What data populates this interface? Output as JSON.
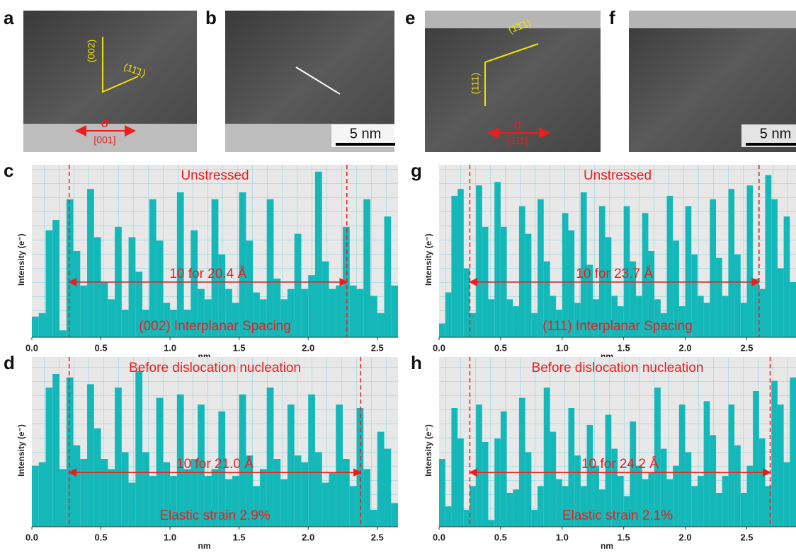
{
  "images": [
    {
      "label": "a",
      "annotations": [
        "(002)",
        "(11̄1)",
        "σ",
        "[001]"
      ]
    },
    {
      "label": "b",
      "annotations": [
        "5 nm"
      ]
    },
    {
      "label": "e",
      "annotations": [
        "(1̄1̄1)",
        "(111)",
        "σ",
        "[111]"
      ]
    },
    {
      "label": "f",
      "annotations": [
        "5 nm"
      ]
    }
  ],
  "chart_data": [
    {
      "type": "histogram",
      "panel": "c",
      "top_text": "Unstressed",
      "middle_text": "10 for 20.4 Å",
      "bottom_text": "(002) Interplanar Spacing",
      "y_label": "Intensity (e⁻)",
      "x_label": "nm",
      "color": "#14b8b8",
      "grid": true,
      "xlim": [
        0,
        2.65
      ],
      "ylim": [
        0,
        100
      ],
      "xticks": [
        {
          "value": 0,
          "label": "0.0"
        },
        0.5,
        {
          "value": 1,
          "label": "1.0"
        },
        1.5,
        {
          "value": 2,
          "label": "2.0"
        },
        2.5
      ],
      "vlines": [
        0.27,
        2.28
      ],
      "bins": [
        0,
        0.05,
        0.1,
        0.15,
        0.2,
        0.25,
        0.3,
        0.35,
        0.4,
        0.45,
        0.5,
        0.55,
        0.6,
        0.65,
        0.7,
        0.75,
        0.8,
        0.85,
        0.9,
        0.95,
        1,
        1.05,
        1.1,
        1.15,
        1.2,
        1.25,
        1.3,
        1.35,
        1.4,
        1.45,
        1.5,
        1.55,
        1.6,
        1.65,
        1.7,
        1.75,
        1.8,
        1.85,
        1.9,
        1.95,
        2,
        2.05,
        2.1,
        2.15,
        2.2,
        2.25,
        2.3,
        2.35,
        2.4,
        2.45,
        2.5,
        2.55,
        2.6,
        2.65
      ],
      "values": [
        12,
        14,
        62,
        68,
        4,
        80,
        50,
        30,
        86,
        58,
        32,
        22,
        64,
        16,
        58,
        38,
        16,
        80,
        56,
        20,
        16,
        84,
        16,
        62,
        28,
        22,
        80,
        48,
        28,
        20,
        84,
        56,
        26,
        22,
        80,
        34,
        22,
        28,
        60,
        28,
        36,
        96,
        44,
        28,
        30,
        64,
        30,
        28,
        80,
        24,
        14,
        70,
        30
      ]
    },
    {
      "type": "histogram",
      "panel": "d",
      "top_text": "Before dislocation nucleation",
      "middle_text": "10 for 21.0 Å",
      "bottom_text": "Elastic strain 2.9%",
      "y_label": "Intensity (e⁻)",
      "x_label": "nm",
      "color": "#14b8b8",
      "grid": true,
      "xlim": [
        0,
        2.65
      ],
      "ylim": [
        0,
        100
      ],
      "xticks": [
        {
          "value": 0,
          "label": "0.0"
        },
        0.5,
        {
          "value": 1,
          "label": "1.0"
        },
        1.5,
        {
          "value": 2,
          "label": "2.0"
        },
        2.5
      ],
      "vlines": [
        0.27,
        2.38
      ],
      "bins": [
        0,
        0.05,
        0.1,
        0.15,
        0.2,
        0.25,
        0.3,
        0.35,
        0.4,
        0.45,
        0.5,
        0.55,
        0.6,
        0.65,
        0.7,
        0.75,
        0.8,
        0.85,
        0.9,
        0.95,
        1,
        1.05,
        1.1,
        1.15,
        1.2,
        1.25,
        1.3,
        1.35,
        1.4,
        1.45,
        1.5,
        1.55,
        1.6,
        1.65,
        1.7,
        1.75,
        1.8,
        1.85,
        1.9,
        1.95,
        2,
        2.05,
        2.1,
        2.15,
        2.2,
        2.25,
        2.3,
        2.35,
        2.4,
        2.45,
        2.5,
        2.55,
        2.6,
        2.65
      ],
      "values": [
        36,
        38,
        82,
        90,
        34,
        88,
        48,
        40,
        84,
        58,
        40,
        34,
        82,
        44,
        26,
        92,
        44,
        30,
        76,
        38,
        30,
        78,
        34,
        40,
        72,
        30,
        34,
        68,
        28,
        30,
        78,
        42,
        24,
        34,
        82,
        40,
        28,
        72,
        42,
        38,
        78,
        44,
        26,
        32,
        72,
        40,
        24,
        70,
        34,
        10,
        56,
        46,
        14
      ]
    },
    {
      "type": "histogram",
      "panel": "g",
      "top_text": "Unstressed",
      "middle_text": "10 for 23.7 Å",
      "bottom_text": "(111) Interplanar Spacing",
      "y_label": "Intensity (e⁻)",
      "x_label": "nm",
      "color": "#14b8b8",
      "grid": true,
      "xlim": [
        0,
        2.9
      ],
      "ylim": [
        0,
        100
      ],
      "xticks": [
        {
          "value": 0,
          "label": "0.0"
        },
        0.5,
        {
          "value": 1,
          "label": "1.0"
        },
        1.5,
        {
          "value": 2,
          "label": "2.0"
        },
        2.5
      ],
      "vlines": [
        0.25,
        2.6
      ],
      "bins": [
        0,
        0.05,
        0.1,
        0.15,
        0.2,
        0.25,
        0.3,
        0.35,
        0.4,
        0.45,
        0.5,
        0.55,
        0.6,
        0.65,
        0.7,
        0.75,
        0.8,
        0.85,
        0.9,
        0.95,
        1,
        1.05,
        1.1,
        1.15,
        1.2,
        1.25,
        1.3,
        1.35,
        1.4,
        1.45,
        1.5,
        1.55,
        1.6,
        1.65,
        1.7,
        1.75,
        1.8,
        1.85,
        1.9,
        1.95,
        2,
        2.05,
        2.1,
        2.15,
        2.2,
        2.25,
        2.3,
        2.35,
        2.4,
        2.45,
        2.5,
        2.55,
        2.6,
        2.65,
        2.7,
        2.75,
        2.8,
        2.85,
        2.9
      ],
      "values": [
        8,
        26,
        82,
        86,
        40,
        14,
        88,
        64,
        22,
        90,
        64,
        22,
        18,
        76,
        60,
        14,
        80,
        44,
        24,
        16,
        72,
        62,
        20,
        84,
        42,
        22,
        76,
        58,
        24,
        18,
        76,
        44,
        24,
        72,
        50,
        22,
        14,
        82,
        56,
        18,
        76,
        48,
        24,
        20,
        80,
        46,
        24,
        86,
        48,
        20,
        88,
        34,
        28,
        94,
        80,
        40,
        70,
        32
      ]
    },
    {
      "type": "histogram",
      "panel": "h",
      "top_text": "Before dislocation nucleation",
      "middle_text": "10 for 24.2 Å",
      "bottom_text": "Elastic strain 2.1%",
      "y_label": "Intensity (e⁻)",
      "x_label": "nm",
      "color": "#14b8b8",
      "grid": true,
      "xlim": [
        0,
        2.9
      ],
      "ylim": [
        0,
        100
      ],
      "xticks": [
        {
          "value": 0,
          "label": "0.0"
        },
        0.5,
        {
          "value": 1,
          "label": "1.0"
        },
        1.5,
        {
          "value": 2,
          "label": "2.0"
        },
        2.5
      ],
      "vlines": [
        0.25,
        2.69
      ],
      "bins": [
        0,
        0.05,
        0.1,
        0.15,
        0.2,
        0.25,
        0.3,
        0.35,
        0.4,
        0.45,
        0.5,
        0.55,
        0.6,
        0.65,
        0.7,
        0.75,
        0.8,
        0.85,
        0.9,
        0.95,
        1,
        1.05,
        1.1,
        1.15,
        1.2,
        1.25,
        1.3,
        1.35,
        1.4,
        1.45,
        1.5,
        1.55,
        1.6,
        1.65,
        1.7,
        1.75,
        1.8,
        1.85,
        1.9,
        1.95,
        2,
        2.05,
        2.1,
        2.15,
        2.2,
        2.25,
        2.3,
        2.35,
        2.4,
        2.45,
        2.5,
        2.55,
        2.6,
        2.65,
        2.7,
        2.75,
        2.8,
        2.85,
        2.9
      ],
      "values": [
        40,
        12,
        70,
        52,
        10,
        24,
        72,
        50,
        4,
        52,
        68,
        20,
        22,
        76,
        44,
        10,
        24,
        82,
        56,
        28,
        24,
        70,
        42,
        24,
        60,
        36,
        22,
        66,
        46,
        30,
        18,
        62,
        36,
        28,
        32,
        82,
        46,
        28,
        36,
        72,
        44,
        24,
        30,
        74,
        54,
        20,
        30,
        72,
        48,
        20,
        36,
        80,
        52,
        24,
        86,
        72,
        38,
        88
      ]
    }
  ]
}
